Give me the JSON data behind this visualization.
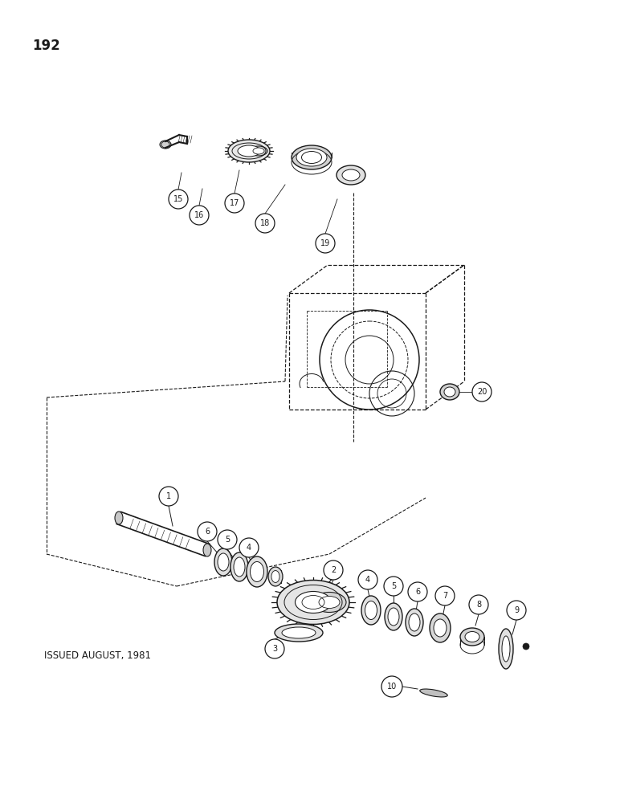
{
  "page_number": "192",
  "issued_text": "ISSUED AUGUST, 1981",
  "bg": "#ffffff",
  "lc": "#1a1a1a",
  "fig_w": 7.72,
  "fig_h": 10.0,
  "dpi": 100
}
